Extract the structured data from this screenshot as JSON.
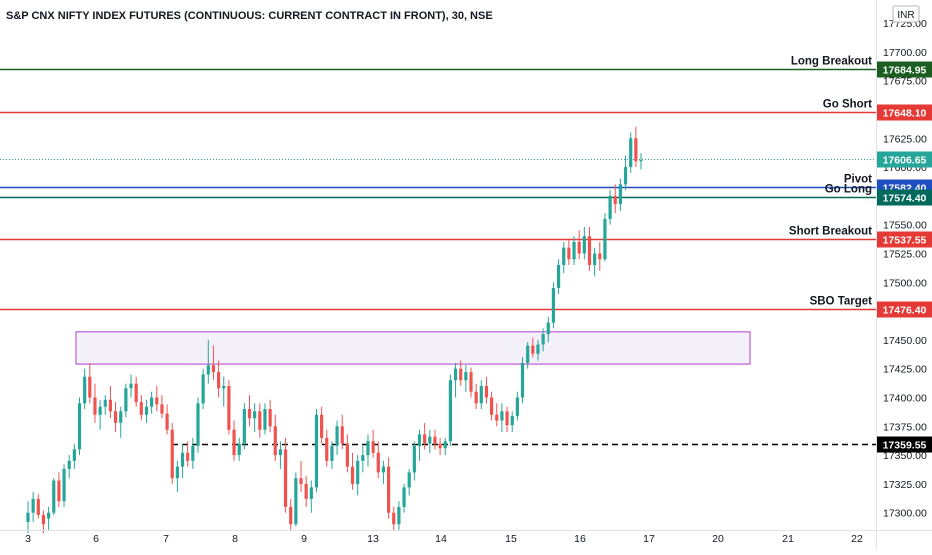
{
  "header": {
    "title": "S&P CNX NIFTY INDEX FUTURES (CONTINUOUS: CURRENT CONTRACT IN FRONT), 30, NSE",
    "currency": "INR"
  },
  "colors": {
    "up": "#26a69a",
    "down": "#ef5350",
    "long_breakout": "#1b5e20",
    "go_short": "#e53935",
    "pivot": "#1e4fc2",
    "go_long": "#00695c",
    "short_breakout": "#e53935",
    "sbo_target": "#e53935",
    "support": "#000000",
    "zone_fill": "#f3f0f9",
    "zone_border": "#b43fd1",
    "last_price": "#26a69a"
  },
  "chart_data": {
    "type": "candlestick",
    "title": "S&P CNX NIFTY INDEX FUTURES (CONTINUOUS: CURRENT CONTRACT IN FRONT), 30, NSE",
    "ylim": [
      17285,
      17745
    ],
    "y_ticks": [
      17300,
      17325,
      17350,
      17375,
      17400,
      17425,
      17450,
      17475,
      17500,
      17525,
      17550,
      17575,
      17600,
      17625,
      17650,
      17675,
      17700,
      17725
    ],
    "y_tick_labels": [
      "17300.00",
      "17325.00",
      "17350.00",
      "17375.00",
      "17400.00",
      "17425.00",
      "17450.00",
      "17475.00",
      "17500.00",
      "17525.00",
      "17550.00",
      "17575.00",
      "17600.00",
      "17625.00",
      "17650.00",
      "17675.00",
      "17700.00",
      "17725.00"
    ],
    "x_tick_labels": [
      "3",
      "6",
      "7",
      "8",
      "9",
      "13",
      "14",
      "15",
      "16",
      "17",
      "20",
      "21",
      "22"
    ],
    "levels": [
      {
        "name": "Long Breakout",
        "price": 17684.95,
        "tag": "17684.95",
        "color_key": "long_breakout",
        "style": "solid"
      },
      {
        "name": "Go Short",
        "price": 17648.1,
        "tag": "17648.10",
        "color_key": "go_short",
        "style": "solid"
      },
      {
        "name": "Pivot",
        "price": 17582.4,
        "tag": "17582.40",
        "color_key": "pivot",
        "style": "solid"
      },
      {
        "name": "Go Long",
        "price": 17574.4,
        "tag": "17574.40",
        "color_key": "go_long",
        "style": "solid"
      },
      {
        "name": "Short Breakout",
        "price": 17537.55,
        "tag": "17537.55",
        "color_key": "short_breakout",
        "style": "solid"
      },
      {
        "name": "SBO Target",
        "price": 17476.4,
        "tag": "17476.40",
        "color_key": "sbo_target",
        "style": "solid"
      },
      {
        "name": "",
        "price": 17359.55,
        "tag": "17359.55",
        "color_key": "support",
        "style": "dashed"
      }
    ],
    "last_price": {
      "price": 17606.65,
      "tag": "17606.65"
    },
    "zone": {
      "price_top": 17457,
      "price_bottom": 17429
    },
    "candles": [
      [
        17292,
        17310,
        17282,
        17300
      ],
      [
        17300,
        17318,
        17292,
        17312
      ],
      [
        17312,
        17316,
        17295,
        17298
      ],
      [
        17298,
        17302,
        17282,
        17290
      ],
      [
        17295,
        17305,
        17285,
        17300
      ],
      [
        17300,
        17330,
        17298,
        17328
      ],
      [
        17328,
        17335,
        17305,
        17310
      ],
      [
        17310,
        17342,
        17305,
        17338
      ],
      [
        17338,
        17350,
        17330,
        17345
      ],
      [
        17345,
        17360,
        17338,
        17355
      ],
      [
        17355,
        17400,
        17350,
        17395
      ],
      [
        17395,
        17425,
        17390,
        17418
      ],
      [
        17418,
        17430,
        17395,
        17400
      ],
      [
        17400,
        17412,
        17378,
        17385
      ],
      [
        17385,
        17398,
        17372,
        17392
      ],
      [
        17392,
        17402,
        17385,
        17398
      ],
      [
        17398,
        17410,
        17382,
        17388
      ],
      [
        17388,
        17396,
        17370,
        17378
      ],
      [
        17378,
        17392,
        17365,
        17388
      ],
      [
        17388,
        17412,
        17383,
        17408
      ],
      [
        17408,
        17420,
        17400,
        17412
      ],
      [
        17412,
        17418,
        17392,
        17396
      ],
      [
        17396,
        17402,
        17380,
        17385
      ],
      [
        17385,
        17398,
        17378,
        17392
      ],
      [
        17392,
        17405,
        17386,
        17400
      ],
      [
        17400,
        17410,
        17388,
        17394
      ],
      [
        17394,
        17402,
        17382,
        17386
      ],
      [
        17386,
        17394,
        17368,
        17372
      ],
      [
        17372,
        17378,
        17325,
        17330
      ],
      [
        17330,
        17345,
        17318,
        17340
      ],
      [
        17340,
        17360,
        17330,
        17352
      ],
      [
        17352,
        17362,
        17340,
        17345
      ],
      [
        17345,
        17365,
        17338,
        17358
      ],
      [
        17358,
        17400,
        17352,
        17395
      ],
      [
        17395,
        17425,
        17390,
        17420
      ],
      [
        17420,
        17450,
        17412,
        17428
      ],
      [
        17428,
        17445,
        17415,
        17422
      ],
      [
        17422,
        17432,
        17400,
        17408
      ],
      [
        17408,
        17418,
        17392,
        17410
      ],
      [
        17410,
        17415,
        17368,
        17372
      ],
      [
        17372,
        17380,
        17345,
        17350
      ],
      [
        17350,
        17365,
        17345,
        17360
      ],
      [
        17360,
        17395,
        17355,
        17390
      ],
      [
        17390,
        17402,
        17375,
        17382
      ],
      [
        17382,
        17395,
        17370,
        17388
      ],
      [
        17388,
        17395,
        17365,
        17372
      ],
      [
        17372,
        17395,
        17368,
        17390
      ],
      [
        17390,
        17398,
        17370,
        17375
      ],
      [
        17375,
        17385,
        17345,
        17350
      ],
      [
        17350,
        17362,
        17338,
        17355
      ],
      [
        17355,
        17365,
        17300,
        17305
      ],
      [
        17305,
        17312,
        17285,
        17290
      ],
      [
        17290,
        17335,
        17288,
        17330
      ],
      [
        17330,
        17345,
        17318,
        17325
      ],
      [
        17325,
        17332,
        17305,
        17312
      ],
      [
        17312,
        17328,
        17300,
        17322
      ],
      [
        17322,
        17390,
        17318,
        17385
      ],
      [
        17385,
        17392,
        17360,
        17365
      ],
      [
        17365,
        17372,
        17340,
        17345
      ],
      [
        17345,
        17362,
        17338,
        17358
      ],
      [
        17358,
        17380,
        17350,
        17375
      ],
      [
        17375,
        17385,
        17355,
        17360
      ],
      [
        17360,
        17368,
        17335,
        17340
      ],
      [
        17340,
        17352,
        17320,
        17325
      ],
      [
        17325,
        17350,
        17315,
        17345
      ],
      [
        17345,
        17358,
        17335,
        17350
      ],
      [
        17350,
        17368,
        17340,
        17362
      ],
      [
        17362,
        17372,
        17348,
        17352
      ],
      [
        17352,
        17362,
        17330,
        17335
      ],
      [
        17335,
        17345,
        17325,
        17340
      ],
      [
        17340,
        17348,
        17295,
        17300
      ],
      [
        17300,
        17305,
        17285,
        17290
      ],
      [
        17290,
        17310,
        17285,
        17305
      ],
      [
        17305,
        17325,
        17300,
        17322
      ],
      [
        17322,
        17338,
        17315,
        17335
      ],
      [
        17335,
        17362,
        17328,
        17358
      ],
      [
        17358,
        17372,
        17345,
        17368
      ],
      [
        17368,
        17378,
        17355,
        17360
      ],
      [
        17360,
        17372,
        17352,
        17366
      ],
      [
        17366,
        17372,
        17355,
        17360
      ],
      [
        17360,
        17365,
        17350,
        17356
      ],
      [
        17356,
        17365,
        17350,
        17362
      ],
      [
        17362,
        17420,
        17358,
        17415
      ],
      [
        17415,
        17430,
        17400,
        17425
      ],
      [
        17425,
        17432,
        17410,
        17415
      ],
      [
        17415,
        17428,
        17405,
        17422
      ],
      [
        17422,
        17426,
        17400,
        17405
      ],
      [
        17405,
        17412,
        17390,
        17395
      ],
      [
        17395,
        17415,
        17390,
        17410
      ],
      [
        17410,
        17418,
        17395,
        17400
      ],
      [
        17400,
        17405,
        17380,
        17385
      ],
      [
        17385,
        17395,
        17375,
        17380
      ],
      [
        17380,
        17395,
        17370,
        17388
      ],
      [
        17388,
        17392,
        17370,
        17376
      ],
      [
        17376,
        17388,
        17370,
        17384
      ],
      [
        17384,
        17405,
        17380,
        17400
      ],
      [
        17400,
        17435,
        17395,
        17430
      ],
      [
        17430,
        17448,
        17425,
        17445
      ],
      [
        17445,
        17452,
        17435,
        17438
      ],
      [
        17438,
        17450,
        17432,
        17446
      ],
      [
        17446,
        17460,
        17440,
        17455
      ],
      [
        17455,
        17470,
        17448,
        17465
      ],
      [
        17465,
        17500,
        17460,
        17495
      ],
      [
        17495,
        17520,
        17490,
        17515
      ],
      [
        17515,
        17535,
        17508,
        17530
      ],
      [
        17530,
        17538,
        17515,
        17520
      ],
      [
        17520,
        17540,
        17515,
        17535
      ],
      [
        17535,
        17545,
        17520,
        17525
      ],
      [
        17525,
        17548,
        17520,
        17540
      ],
      [
        17540,
        17548,
        17510,
        17515
      ],
      [
        17515,
        17530,
        17505,
        17525
      ],
      [
        17525,
        17535,
        17510,
        17520
      ],
      [
        17520,
        17560,
        17518,
        17555
      ],
      [
        17555,
        17580,
        17550,
        17575
      ],
      [
        17575,
        17585,
        17560,
        17568
      ],
      [
        17568,
        17590,
        17562,
        17585
      ],
      [
        17585,
        17610,
        17580,
        17600
      ],
      [
        17600,
        17630,
        17595,
        17625
      ],
      [
        17625,
        17635,
        17600,
        17605
      ],
      [
        17605,
        17612,
        17598,
        17606
      ]
    ]
  }
}
